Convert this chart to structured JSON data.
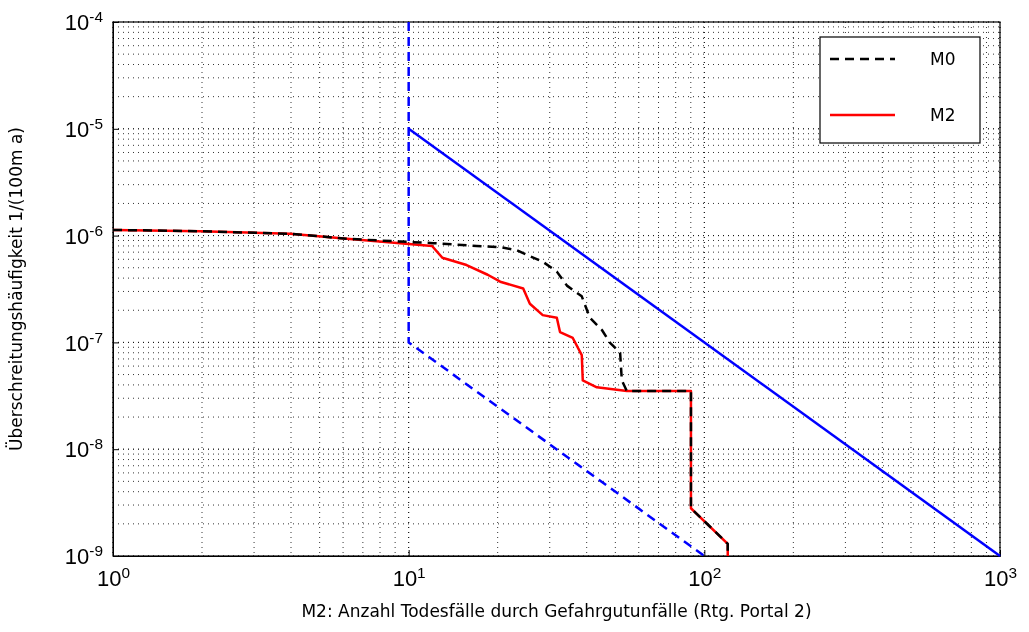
{
  "chart_data": {
    "type": "line",
    "xlabel": "M2: Anzahl Todesfälle durch Gefahrgutunfälle (Rtg. Portal 2)",
    "ylabel": "Überschreitungshäufigkeit 1/(100m a)",
    "log": "xy",
    "grid": true,
    "legend": "top right",
    "xlim": [
      1,
      1000
    ],
    "ylim": [
      1e-09,
      0.0001
    ],
    "xticks": [
      {
        "value": 1,
        "label": "10$^{0}$"
      },
      {
        "value": 10,
        "label": "10$^{1}$"
      },
      {
        "value": 100,
        "label": "10$^{2}$"
      },
      {
        "value": 1000,
        "label": "10$^{3}$"
      }
    ],
    "yticks": [
      {
        "value": 1e-09,
        "label": "10$^{-9}$"
      },
      {
        "value": 1e-08,
        "label": "10$^{-8}$"
      },
      {
        "value": 1e-07,
        "label": "10$^{-7}$"
      },
      {
        "value": 1e-06,
        "label": "10$^{-6}$"
      },
      {
        "value": 1e-05,
        "label": "10$^{-5}$"
      },
      {
        "value": 0.0001,
        "label": "10$^{-4}$"
      }
    ],
    "series": [
      {
        "color": "#0000ff",
        "line_style": "solid",
        "x": [
          10,
          1000
        ],
        "values": [
          1e-05,
          1e-09
        ]
      },
      {
        "color": "#0000ff",
        "line_style": "dashed",
        "x": [
          10,
          10,
          100
        ],
        "values": [
          0.0001,
          1e-07,
          1e-09
        ]
      },
      {
        "name": "M0",
        "color": "#000000",
        "line_style": "dashed",
        "x": [
          1,
          1.97,
          3.97,
          6.33,
          9.35,
          12.1,
          17,
          20.4,
          23.2,
          25.1,
          28.4,
          31.7,
          34.3,
          38.5,
          41,
          45.1,
          48,
          51.9,
          52.6,
          54.7,
          90.1,
          90.1,
          120,
          120
        ],
        "values": [
          1.13e-06,
          1.1e-06,
          1.04e-06,
          9.3e-07,
          8.8e-07,
          8.5e-07,
          8e-07,
          7.8e-07,
          7.3e-07,
          6.6e-07,
          5.7e-07,
          4.6e-07,
          3.4e-07,
          2.7e-07,
          1.7e-07,
          1.3e-07,
          9.9e-08,
          8e-08,
          4.4e-08,
          3.5e-08,
          3.5e-08,
          2.8e-09,
          1.3e-09,
          1e-09
        ]
      },
      {
        "name": "M2",
        "color": "#ff0000",
        "line_style": "solid",
        "x": [
          1,
          1.97,
          3.97,
          6.33,
          9.35,
          12,
          13,
          15.7,
          18.5,
          20.4,
          24.4,
          25.7,
          28.4,
          31.7,
          32.5,
          35.9,
          38.5,
          38.8,
          43.3,
          54.7,
          90.1,
          90.1,
          120,
          120
        ],
        "values": [
          1.13e-06,
          1.1e-06,
          1.04e-06,
          9.3e-07,
          8.5e-07,
          8e-07,
          6.2e-07,
          5.3e-07,
          4.3e-07,
          3.7e-07,
          3.2e-07,
          2.3e-07,
          1.8e-07,
          1.7e-07,
          1.25e-07,
          1.1e-07,
          7.6e-08,
          4.4e-08,
          3.8e-08,
          3.5e-08,
          3.5e-08,
          2.8e-09,
          1.3e-09,
          1e-09
        ]
      }
    ]
  }
}
